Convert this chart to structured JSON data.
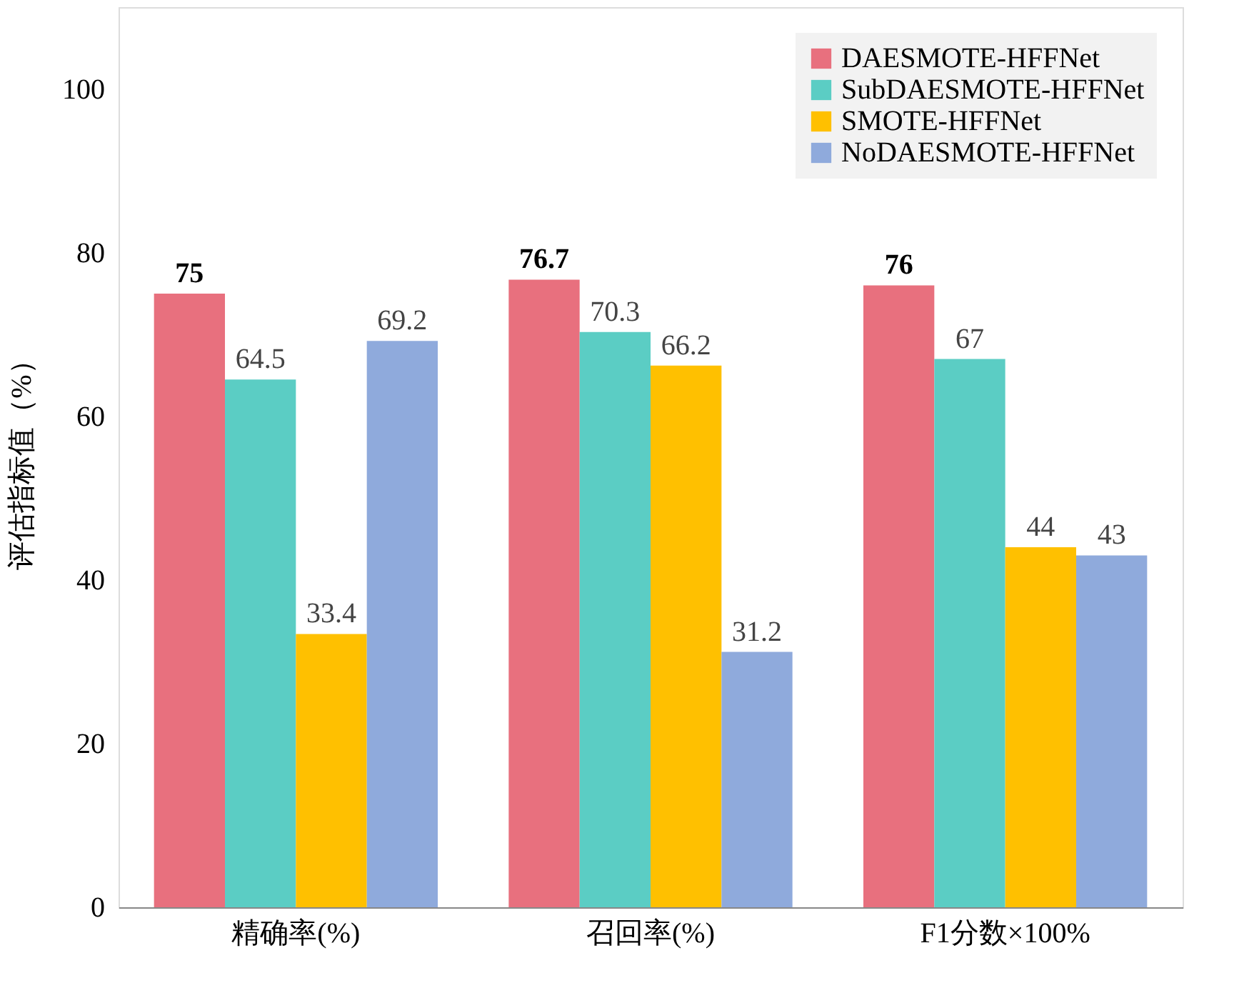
{
  "chart_data": {
    "type": "bar",
    "ylabel": "评估指标值（%）",
    "categories": [
      "精确率(%)",
      "召回率(%)",
      "F1分数×100%"
    ],
    "series": [
      {
        "name": "DAESMOTE-HFFNet",
        "color": "#e8707e",
        "values": [
          75,
          76.7,
          76
        ]
      },
      {
        "name": "SubDAESMOTE-HFFNet",
        "color": "#5bcdc4",
        "values": [
          64.5,
          70.3,
          67
        ]
      },
      {
        "name": "SMOTE-HFFNet",
        "color": "#ffc000",
        "values": [
          33.4,
          66.2,
          44
        ]
      },
      {
        "name": "NoDAESMOTE-HFFNet",
        "color": "#8faadc",
        "values": [
          69.2,
          31.2,
          43
        ]
      }
    ],
    "ylim": [
      0,
      110
    ],
    "yticks": [
      0,
      20,
      40,
      60,
      80,
      100
    ],
    "data_labels": true,
    "legend": "top right",
    "grid": false
  }
}
